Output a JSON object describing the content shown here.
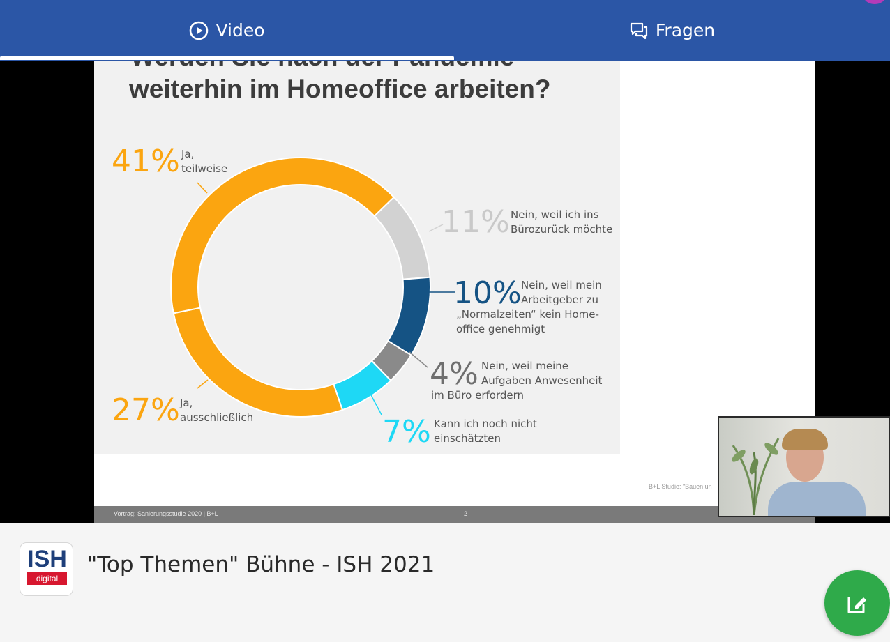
{
  "tabs": [
    {
      "label": "Video",
      "icon": "play-circle-icon",
      "active": true
    },
    {
      "label": "Fragen",
      "icon": "chat-bubbles-icon",
      "active": false
    }
  ],
  "slide": {
    "title_line1": "Werden Sie nach der Pandemie",
    "title_line2": "weiterhin im Homeoffice arbeiten?",
    "footer_left": "Vortrag: Sanierungsstudie 2020 | B+L",
    "page_number": "2",
    "source": "B+L Studie: \"Bauen un"
  },
  "chart_data": {
    "type": "pie",
    "variant": "donut",
    "slices": [
      {
        "label_lines": [
          "Ja,",
          "teilweise"
        ],
        "value": 41,
        "value_text": "41%",
        "color": "#fba510"
      },
      {
        "label_lines": [
          "Nein, weil ich ins",
          "Bürozurück möchte"
        ],
        "value": 11,
        "value_text": "11%",
        "color": "#d2d2d2"
      },
      {
        "label_lines": [
          "Nein, weil mein",
          "Arbeitgeber zu",
          "„Normalzeiten“ kein Home-",
          "office genehmigt"
        ],
        "value": 10,
        "value_text": "10%",
        "color": "#155384"
      },
      {
        "label_lines": [
          "Nein, weil meine",
          "Aufgaben Anwesenheit",
          "im Büro erfordern"
        ],
        "value": 4,
        "value_text": "4%",
        "color": "#8a8a8a"
      },
      {
        "label_lines": [
          "Kann ich noch nicht",
          "einschätzten"
        ],
        "value": 7,
        "value_text": "7%",
        "color": "#1ed8f5"
      },
      {
        "label_lines": [
          "Ja,",
          "ausschließlich"
        ],
        "value": 27,
        "value_text": "27%",
        "color": "#fba510"
      }
    ]
  },
  "event": {
    "logo_text": "ISH",
    "logo_sub": "digital",
    "title": "\"Top Themen\" Bühne - ISH 2021"
  },
  "fab": {
    "icon": "edit-note-icon"
  },
  "colors": {
    "brand_blue": "#2b56a6",
    "fab_green": "#2faa4a",
    "accent_orange": "#fba510"
  }
}
